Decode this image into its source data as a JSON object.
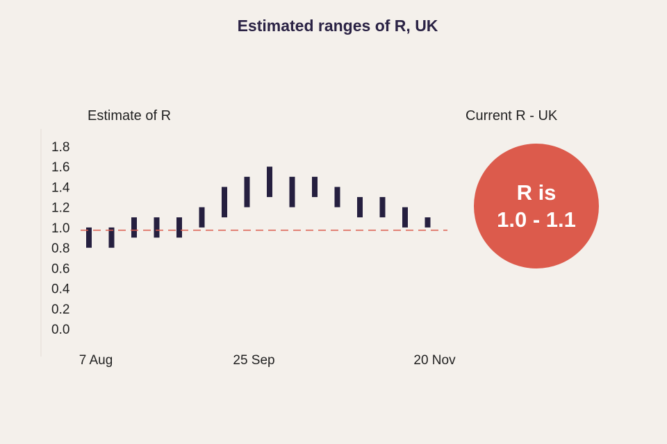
{
  "chart_data": {
    "type": "range-bar",
    "title": "Estimated ranges of R, UK",
    "ylabel": "Estimate of R",
    "ylim": [
      0,
      1.8
    ],
    "yticks": [
      "1.8",
      "1.6",
      "1.4",
      "1.2",
      "1.0",
      "0.8",
      "0.6",
      "0.4",
      "0.2",
      "0.0"
    ],
    "xtick_labels": [
      "7 Aug",
      "25 Sep",
      "20 Nov"
    ],
    "xtick_indices": [
      0,
      7,
      15
    ],
    "reference_line": 1.0,
    "ranges": [
      {
        "low": 0.8,
        "high": 1.0
      },
      {
        "low": 0.8,
        "high": 1.0
      },
      {
        "low": 0.9,
        "high": 1.1
      },
      {
        "low": 0.9,
        "high": 1.1
      },
      {
        "low": 0.9,
        "high": 1.1
      },
      {
        "low": 1.0,
        "high": 1.2
      },
      {
        "low": 1.1,
        "high": 1.4
      },
      {
        "low": 1.2,
        "high": 1.5
      },
      {
        "low": 1.3,
        "high": 1.6
      },
      {
        "low": 1.2,
        "high": 1.5
      },
      {
        "low": 1.3,
        "high": 1.5
      },
      {
        "low": 1.2,
        "high": 1.4
      },
      {
        "low": 1.1,
        "high": 1.3
      },
      {
        "low": 1.1,
        "high": 1.3
      },
      {
        "low": 1.0,
        "high": 1.2
      },
      {
        "low": 1.0,
        "high": 1.1
      }
    ],
    "colors": {
      "bar": "#251f3f",
      "reference": "#dc5b4c"
    }
  },
  "current": {
    "heading": "Current R - UK",
    "line1": "R is",
    "line2": "1.0 - 1.1"
  }
}
